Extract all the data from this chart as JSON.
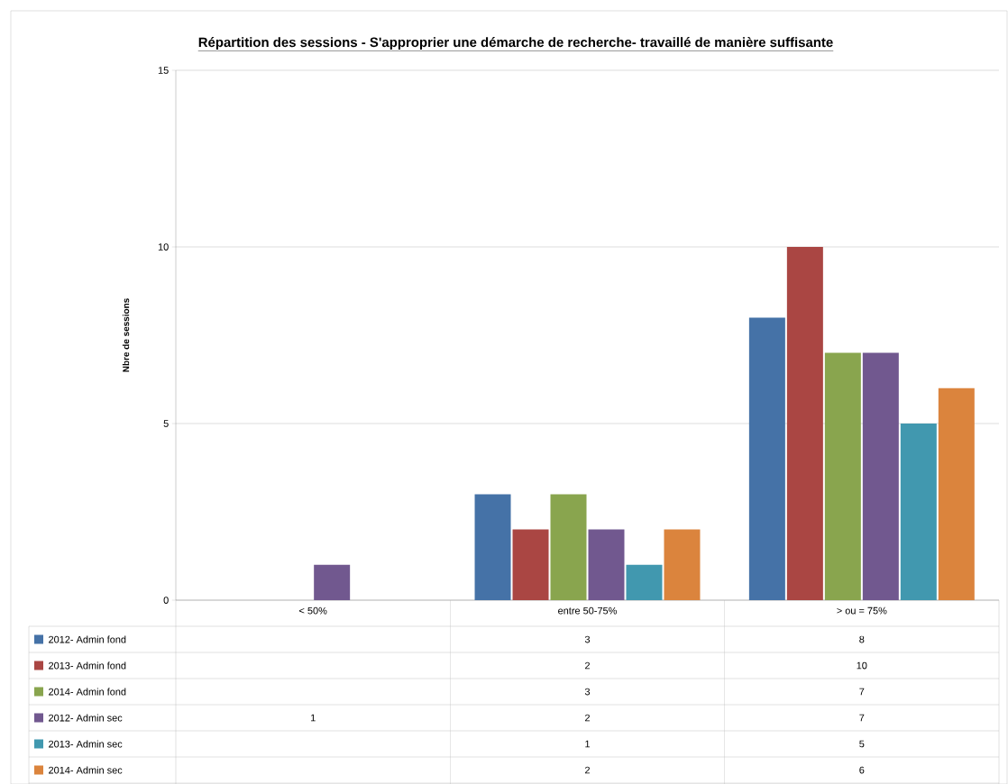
{
  "chart_data": {
    "type": "bar",
    "title": "Répartition des sessions -   S'approprier une démarche de recherche- travaillé de manière suffisante",
    "ylabel": "Nbre de sessions",
    "categories": [
      "< 50%",
      "entre 50-75%",
      "> ou = 75%"
    ],
    "series": [
      {
        "name": "2012- Admin fond",
        "color": "#4572a7",
        "values": [
          null,
          3,
          8
        ]
      },
      {
        "name": "2013- Admin fond",
        "color": "#aa4643",
        "values": [
          null,
          2,
          10
        ]
      },
      {
        "name": "2014- Admin fond",
        "color": "#89a54e",
        "values": [
          null,
          3,
          7
        ]
      },
      {
        "name": "2012- Admin sec",
        "color": "#71588f",
        "values": [
          1,
          2,
          7
        ]
      },
      {
        "name": "2013- Admin sec",
        "color": "#4198af",
        "values": [
          null,
          1,
          5
        ]
      },
      {
        "name": "2014- Admin sec",
        "color": "#db843d",
        "values": [
          null,
          2,
          6
        ]
      }
    ],
    "ylim": [
      0,
      15
    ],
    "yticks": [
      0,
      5,
      10,
      15
    ],
    "grid": "y",
    "legend": "bottom",
    "data_labels": true
  }
}
